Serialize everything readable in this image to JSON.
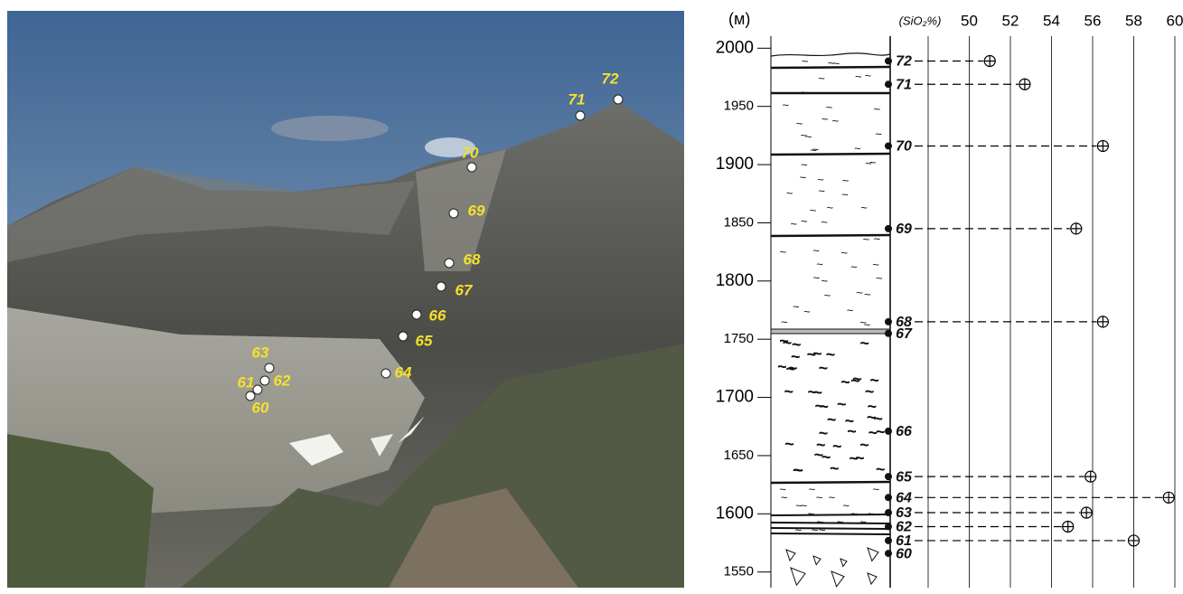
{
  "chart_data": {
    "type": "scatter",
    "y_label": "(м)",
    "x_label": "(SiO₂%)",
    "samples": [
      "72",
      "71",
      "70",
      "69",
      "68",
      "67",
      "66",
      "65",
      "64",
      "63",
      "62",
      "61",
      "60"
    ],
    "elevation": [
      1989,
      1969,
      1916,
      1845,
      1765,
      1755,
      1671,
      1632,
      1614,
      1601,
      1589,
      1577,
      1566
    ],
    "values": [
      51.0,
      52.7,
      56.5,
      55.2,
      56.5,
      null,
      null,
      55.9,
      59.7,
      55.7,
      54.8,
      58.0,
      null
    ],
    "ylim": [
      1535,
      2015
    ],
    "yticks": [
      2000,
      1950,
      1900,
      1850,
      1800,
      1750,
      1700,
      1650,
      1600,
      1550
    ],
    "xlim": [
      48,
      60
    ],
    "xticks": [
      50,
      52,
      54,
      56,
      58,
      60
    ],
    "color": "#111111"
  }
}
